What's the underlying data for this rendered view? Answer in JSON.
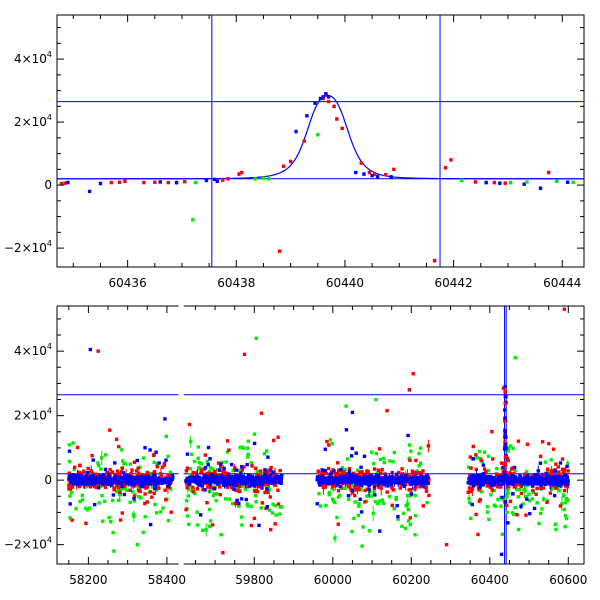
{
  "chart_data": [
    {
      "type": "scatter",
      "panel": "top",
      "xlim": [
        60434.7,
        60444.4
      ],
      "ylim": [
        -26000,
        54000
      ],
      "xticks": [
        60436,
        60438,
        60440,
        60442,
        60444
      ],
      "xtick_labels": [
        "60436",
        "60438",
        "60440",
        "60442",
        "60444"
      ],
      "yticks": [
        -20000,
        0,
        20000,
        40000
      ],
      "ytick_labels": [
        {
          "sign": "-",
          "mantissa": "2",
          "exponent": "4"
        },
        {
          "sign": "",
          "mantissa": "0",
          "exponent": ""
        },
        {
          "sign": "",
          "mantissa": "2",
          "exponent": "4"
        },
        {
          "sign": "",
          "mantissa": "4",
          "exponent": "4"
        }
      ],
      "hlines": [
        2000,
        26500
      ],
      "vlines": [
        60437.55,
        60441.75
      ],
      "model": {
        "type": "lorentzian-peak",
        "t0": 60439.68,
        "base": 2000,
        "peak": 28500,
        "width": 0.48
      },
      "colors": {
        "red": "#ff0000",
        "blue": "#0000ff",
        "green": "#00ee00",
        "line": "#0000ff"
      },
      "series": [
        {
          "color": "red",
          "x": [
            60434.78,
            60434.85,
            60435.7,
            60435.85,
            60435.95,
            60436.3,
            60436.5,
            60436.75,
            60437.05,
            60437.75,
            60437.85,
            60438.05,
            60438.1,
            60438.8,
            60438.87,
            60439.0,
            60439.25,
            60439.6,
            60439.65,
            60439.7,
            60439.8,
            60439.85,
            60439.95,
            60440.3,
            60440.45,
            60440.55,
            60440.75,
            60440.9,
            60441.65,
            60441.85,
            60441.95,
            60442.4,
            60442.75,
            60442.95,
            60443.75
          ],
          "y": [
            500,
            600,
            800,
            900,
            1200,
            800,
            900,
            800,
            1100,
            1600,
            2000,
            3500,
            4000,
            -21000,
            6000,
            7500,
            14000,
            27500,
            28500,
            26500,
            25000,
            21000,
            18000,
            7000,
            4000,
            3500,
            3300,
            5000,
            -24000,
            5500,
            8000,
            1000,
            800,
            600,
            4000
          ]
        },
        {
          "color": "blue",
          "x": [
            60434.9,
            60435.3,
            60435.5,
            60436.6,
            60436.9,
            60437.45,
            60437.6,
            60437.65,
            60439.1,
            60439.3,
            60439.45,
            60439.55,
            60439.6,
            60439.65,
            60439.7,
            60440.2,
            60440.35,
            60440.5,
            60440.6,
            60440.85,
            60442.6,
            60442.85,
            60443.3,
            60443.6,
            60444.1
          ],
          "y": [
            800,
            -2000,
            500,
            1000,
            800,
            1500,
            1800,
            1200,
            17000,
            22000,
            26000,
            27500,
            28000,
            29000,
            28000,
            4000,
            3500,
            3000,
            2700,
            2600,
            800,
            600,
            300,
            -1000,
            900
          ]
        },
        {
          "color": "green",
          "x": [
            60437.2,
            60437.25,
            60438.35,
            60438.5,
            60438.6,
            60439.5,
            60442.15,
            60443.05,
            60443.35,
            60443.9,
            60444.2
          ],
          "y": [
            -11000,
            800,
            2000,
            2200,
            2000,
            16000,
            1500,
            800,
            1000,
            1200,
            900
          ]
        }
      ]
    },
    {
      "type": "scatter",
      "panel": "bottom",
      "xlim": [
        58120,
        60640
      ],
      "ylim": [
        -26000,
        54000
      ],
      "axis_breaks": [
        [
          58430,
          59620
        ]
      ],
      "xticks": [
        58200,
        58400,
        59800,
        60000,
        60200,
        60400,
        60600
      ],
      "xtick_labels": [
        "58200",
        "58400",
        "59800",
        "60000",
        "60200",
        "60400",
        "60600"
      ],
      "yticks": [
        -20000,
        0,
        20000,
        40000
      ],
      "ytick_labels": [
        {
          "sign": "-",
          "mantissa": "2",
          "exponent": "4"
        },
        {
          "sign": "",
          "mantissa": "0",
          "exponent": ""
        },
        {
          "sign": "",
          "mantissa": "2",
          "exponent": "4"
        },
        {
          "sign": "",
          "mantissa": "4",
          "exponent": "4"
        }
      ],
      "hlines": [
        2000,
        26500
      ],
      "vlines": [
        60437.55,
        60441.75
      ],
      "seasons": [
        [
          58150,
          58415
        ],
        [
          59625,
          59870
        ],
        [
          59960,
          60245
        ],
        [
          60345,
          60600
        ]
      ],
      "colors": {
        "red": "#ff0000",
        "blue": "#0000ff",
        "green": "#00ee00",
        "line": "#0000ff"
      },
      "outliers": [
        {
          "color": "blue",
          "x": 58205,
          "y": 40500
        },
        {
          "color": "red",
          "x": 58225,
          "y": 40000
        },
        {
          "color": "blue",
          "x": 58395,
          "y": 19000
        },
        {
          "color": "red",
          "x": 59775,
          "y": 39000
        },
        {
          "color": "green",
          "x": 59805,
          "y": 44000
        },
        {
          "color": "red",
          "x": 60205,
          "y": 33000
        },
        {
          "color": "red",
          "x": 60195,
          "y": 28000
        },
        {
          "color": "green",
          "x": 60465,
          "y": 38000
        },
        {
          "color": "red",
          "x": 60590,
          "y": 53000
        },
        {
          "color": "red",
          "x": 60435,
          "y": 28500
        },
        {
          "color": "blue",
          "x": 60439,
          "y": 29000
        },
        {
          "color": "blue",
          "x": 60050,
          "y": 21000
        },
        {
          "color": "green",
          "x": 60110,
          "y": 25000
        },
        {
          "color": "red",
          "x": 60290,
          "y": -20000
        },
        {
          "color": "red",
          "x": 60580,
          "y": -8000
        },
        {
          "color": "green",
          "x": 58265,
          "y": -22000
        },
        {
          "color": "green",
          "x": 58325,
          "y": -20000
        },
        {
          "color": "red",
          "x": 59720,
          "y": -22500
        },
        {
          "color": "blue",
          "x": 60430,
          "y": -23000
        }
      ]
    }
  ]
}
